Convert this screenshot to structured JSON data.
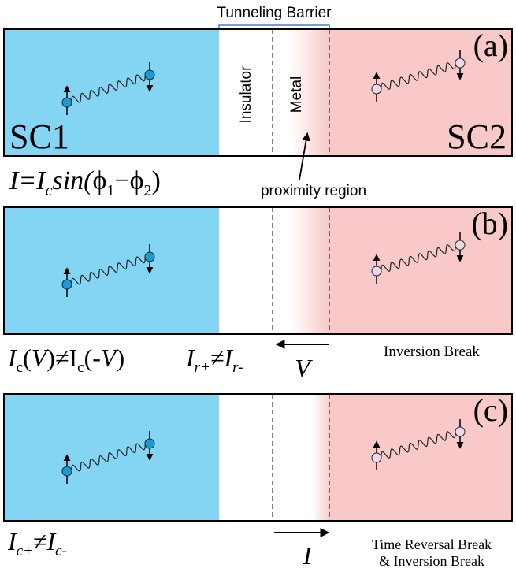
{
  "title": "Tunneling Barrier",
  "panels": [
    {
      "label": "(a)",
      "left": "SC1",
      "right": "SC2",
      "insulator": "Insulator",
      "metal": "Metal",
      "formula": [
        "I=I",
        "c",
        "sin(",
        "ϕ",
        "1",
        "−ϕ",
        "2",
        ")"
      ],
      "annotation": "proximity region"
    },
    {
      "label": "(b)",
      "formula": [
        "I",
        "c",
        "(",
        "V",
        ")≠I",
        "c",
        "(-",
        "V",
        ")"
      ],
      "formula2": [
        "I",
        "r+",
        "≠I",
        "r-"
      ],
      "arrow_label": "V",
      "note": [
        "Inversion Break"
      ]
    },
    {
      "label": "(c)",
      "formula": [
        "I",
        "c+",
        "≠I",
        "c-"
      ],
      "arrow_label": "I",
      "note": [
        "Time Reversal Break",
        "& Inversion Break"
      ]
    }
  ]
}
